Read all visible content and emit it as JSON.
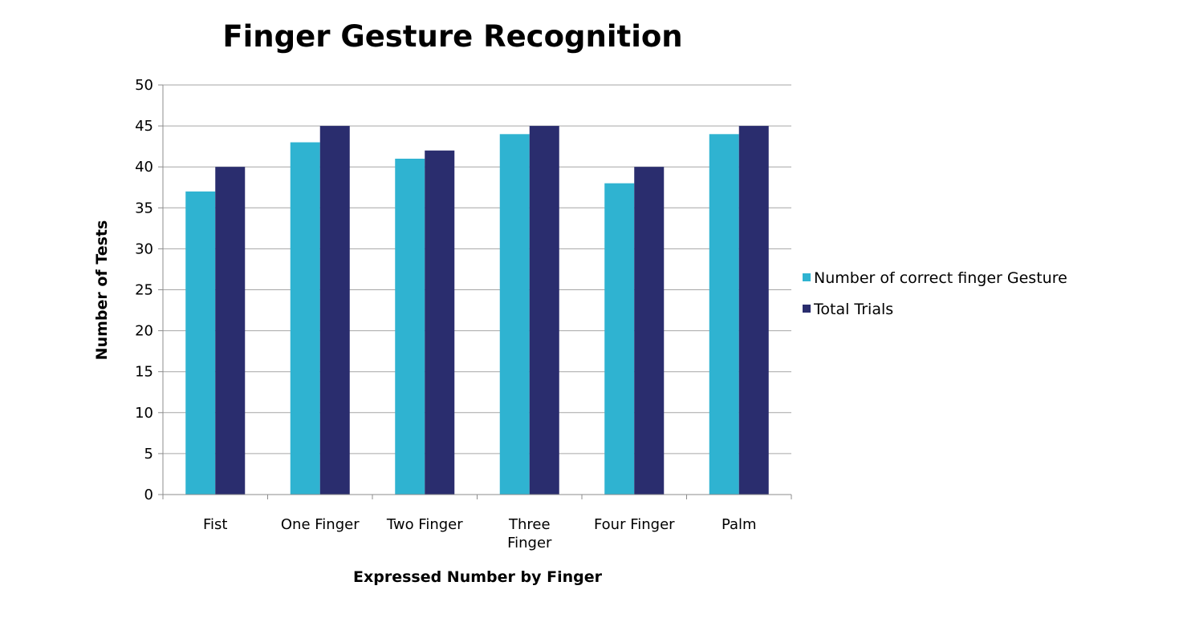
{
  "chart_data": {
    "type": "bar",
    "title": "Finger Gesture Recognition",
    "xlabel": "Expressed Number by Finger",
    "ylabel": "Number of Tests",
    "categories": [
      [
        "Fist"
      ],
      [
        "One Finger"
      ],
      [
        "Two Finger"
      ],
      [
        "Three",
        "Finger"
      ],
      [
        "Four Finger"
      ],
      [
        "Palm"
      ]
    ],
    "series": [
      {
        "name": "Number of correct finger Gesture",
        "color": "#2fb3d1",
        "values": [
          37,
          43,
          41,
          44,
          38,
          44
        ]
      },
      {
        "name": "Total Trials",
        "color": "#2a2d6e",
        "values": [
          40,
          45,
          42,
          45,
          40,
          45
        ]
      }
    ],
    "ylim": [
      0,
      50
    ],
    "yticks": [
      0,
      5,
      10,
      15,
      20,
      25,
      30,
      35,
      40,
      45,
      50
    ],
    "grid": true,
    "legend_position": "right"
  }
}
